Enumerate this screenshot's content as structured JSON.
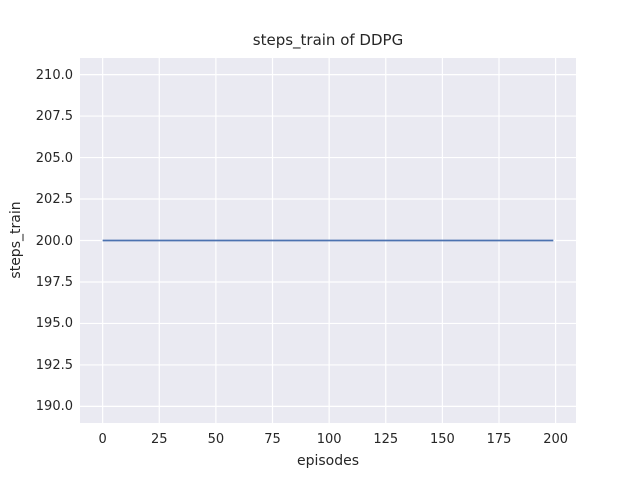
{
  "chart_data": {
    "type": "line",
    "title": "steps_train of DDPG",
    "xlabel": "episodes",
    "ylabel": "steps_train",
    "xlim": [
      -10,
      209
    ],
    "ylim": [
      189,
      211
    ],
    "x_ticks": [
      0,
      25,
      50,
      75,
      100,
      125,
      150,
      175,
      200
    ],
    "y_ticks": [
      "190.0",
      "192.5",
      "195.0",
      "197.5",
      "200.0",
      "202.5",
      "205.0",
      "207.5",
      "210.0"
    ],
    "grid": true,
    "grid_style": "seaborn-darkgrid",
    "legend_position": "none",
    "series": [
      {
        "name": "steps_train",
        "x": [
          0,
          199
        ],
        "y": [
          200,
          200
        ],
        "constant_value": 200,
        "color": "#4c72b0"
      }
    ],
    "colors": {
      "figure_bg": "#ffffff",
      "plot_bg": "#eaeaf2",
      "grid": "#ffffff",
      "line": "#4c72b0",
      "text": "#262626"
    }
  }
}
